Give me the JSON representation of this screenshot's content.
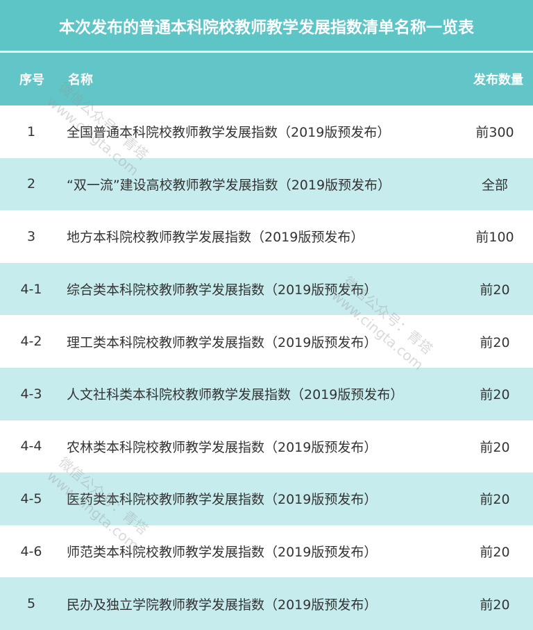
{
  "title": "本次发布的普通本科院校教师教学发展指数清单名称一览表",
  "columns": [
    "序号",
    "名称",
    "发布数量"
  ],
  "rows": [
    {
      "no": "1",
      "name": "全国普通本科院校教师教学发展指数（2019版预发布）",
      "count": "前300"
    },
    {
      "no": "2",
      "name": "“双一流”建设高校教师教学发展指数（2019版预发布）",
      "count": "全部"
    },
    {
      "no": "3",
      "name": "地方本科院校教师教学发展指数（2019版预发布）",
      "count": "前100"
    },
    {
      "no": "4-1",
      "name": "综合类本科院校教师教学发展指数（2019版预发布）",
      "count": "前20"
    },
    {
      "no": "4-2",
      "name": "理工类本科院校教师教学发展指数（2019版预发布）",
      "count": "前20"
    },
    {
      "no": "4-3",
      "name": "人文社科类本科院校教师教学发展指数（2019版预发布）",
      "count": "前20"
    },
    {
      "no": "4-4",
      "name": "农林类本科院校教师教学发展指数（2019版预发布）",
      "count": "前20"
    },
    {
      "no": "4-5",
      "name": "医药类本科院校教师教学发展指数（2019版预发布）",
      "count": "前20"
    },
    {
      "no": "4-6",
      "name": "师范类本科院校教师教学发展指数（2019版预发布）",
      "count": "前20"
    },
    {
      "no": "5",
      "name": "民办及独立学院教师教学发展指数（2019版预发布）",
      "count": "前20"
    }
  ],
  "watermark": "微信公众号：青塔\nwww.cingta.com",
  "colors": {
    "header": "#5ec5c6",
    "alt_row": "#c7eced"
  }
}
